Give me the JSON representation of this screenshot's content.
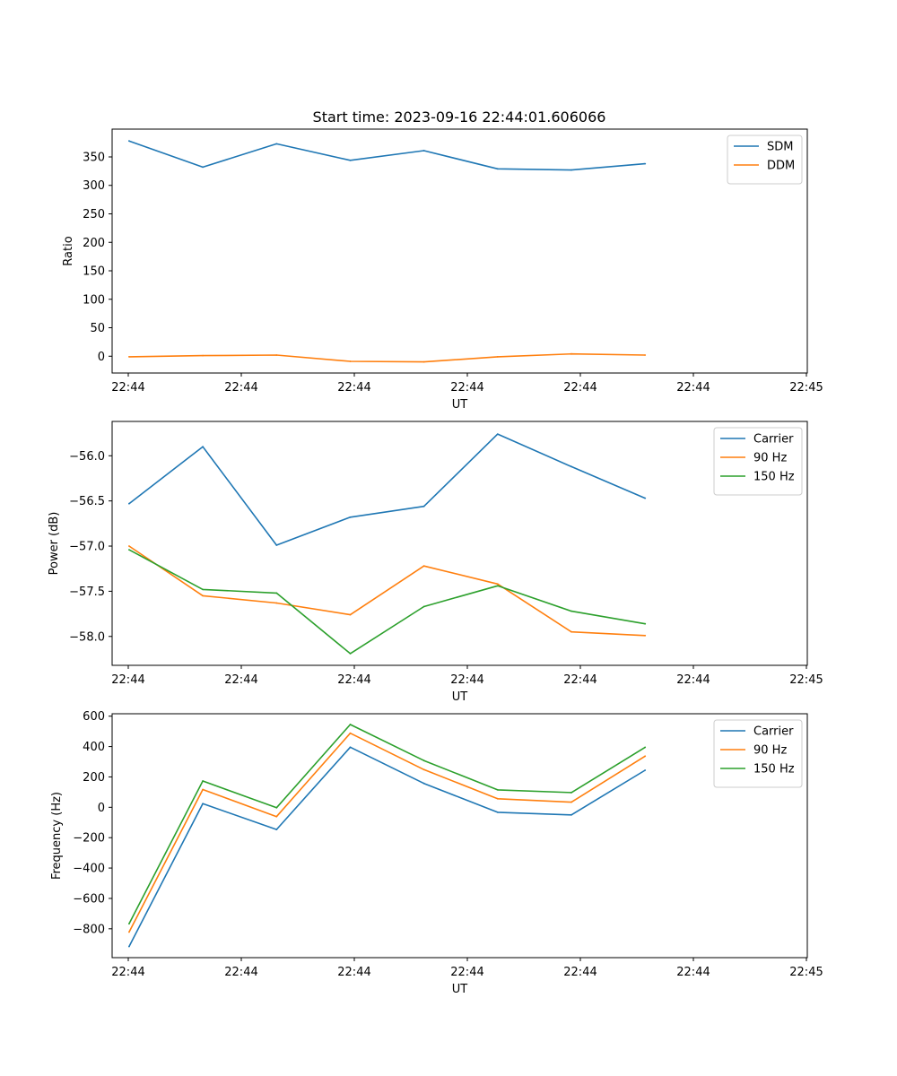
{
  "figure": {
    "title": "Start time: 2023-09-16 22:44:01.606066"
  },
  "colors": {
    "blue": "#1f77b4",
    "orange": "#ff7f0e",
    "green": "#2ca02c"
  },
  "chart_data": [
    {
      "type": "line",
      "ylabel": "Ratio",
      "xlabel": "UT",
      "xticks": [
        "22:44",
        "22:44",
        "22:44",
        "22:44",
        "22:44",
        "22:44",
        "22:45"
      ],
      "x_index_range": [
        -0.23,
        9.2
      ],
      "yticks": [
        0,
        50,
        100,
        150,
        200,
        250,
        300,
        350
      ],
      "ylim": [
        -29.5,
        398.8
      ],
      "legend_position": "top-right",
      "x": [
        0,
        1,
        2,
        3,
        4,
        5,
        6,
        7
      ],
      "series": [
        {
          "name": "SDM",
          "color": "#1f77b4",
          "values": [
            378,
            332,
            373,
            344,
            361,
            329,
            327,
            338
          ]
        },
        {
          "name": "DDM",
          "color": "#ff7f0e",
          "values": [
            -1,
            1,
            2,
            -9,
            -10,
            -1,
            4,
            2
          ]
        }
      ]
    },
    {
      "type": "line",
      "ylabel": "Power (dB)",
      "xlabel": "UT",
      "xticks": [
        "22:44",
        "22:44",
        "22:44",
        "22:44",
        "22:44",
        "22:44",
        "22:45"
      ],
      "x_index_range": [
        -0.23,
        9.2
      ],
      "yticks": [
        -58.0,
        -57.5,
        -57.0,
        -56.5,
        -56.0
      ],
      "ytick_labels": [
        "−58.0",
        "−57.5",
        "−57.0",
        "−56.5",
        "−56.0"
      ],
      "ylim": [
        -58.32,
        -55.62
      ],
      "legend_position": "top-right",
      "x": [
        0,
        1,
        2,
        3,
        4,
        5,
        6,
        7
      ],
      "series": [
        {
          "name": "Carrier",
          "color": "#1f77b4",
          "values": [
            -56.53,
            -55.9,
            -56.99,
            -56.68,
            -56.56,
            -55.76,
            -56.12,
            -56.47
          ]
        },
        {
          "name": "90 Hz",
          "color": "#ff7f0e",
          "values": [
            -57.0,
            -57.55,
            -57.63,
            -57.76,
            -57.22,
            -57.42,
            -57.95,
            -57.99
          ]
        },
        {
          "name": "150 Hz",
          "color": "#2ca02c",
          "values": [
            -57.04,
            -57.48,
            -57.52,
            -58.19,
            -57.67,
            -57.44,
            -57.72,
            -57.86
          ]
        }
      ]
    },
    {
      "type": "line",
      "ylabel": "Frequency (Hz)",
      "xlabel": "UT",
      "xticks": [
        "22:44",
        "22:44",
        "22:44",
        "22:44",
        "22:44",
        "22:44",
        "22:45"
      ],
      "x_index_range": [
        -0.23,
        9.2
      ],
      "yticks": [
        -800,
        -600,
        -400,
        -200,
        0,
        200,
        400,
        600
      ],
      "ytick_labels": [
        "−800",
        "−600",
        "−400",
        "−200",
        "0",
        "200",
        "400",
        "600"
      ],
      "ylim": [
        -990,
        616
      ],
      "legend_position": "top-right",
      "x": [
        0,
        1,
        2,
        3,
        4,
        5,
        6,
        7
      ],
      "series": [
        {
          "name": "Carrier",
          "color": "#1f77b4",
          "values": [
            -917,
            24,
            -146,
            396,
            157,
            -33,
            -50,
            244
          ]
        },
        {
          "name": "90 Hz",
          "color": "#ff7f0e",
          "values": [
            -822,
            117,
            -61,
            488,
            248,
            56,
            34,
            337
          ]
        },
        {
          "name": "150 Hz",
          "color": "#2ca02c",
          "values": [
            -767,
            173,
            -3,
            545,
            308,
            115,
            97,
            395
          ]
        }
      ]
    }
  ]
}
